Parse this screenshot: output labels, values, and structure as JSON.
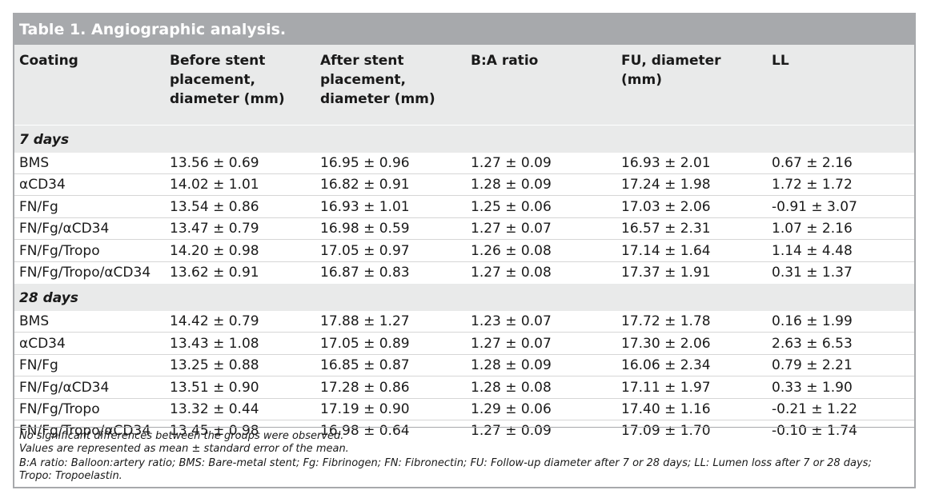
{
  "title": "Table 1. Angiographic analysis.",
  "headers": [
    "Coating",
    "Before stent\nplacement,\ndiameter (mm)",
    "After stent\nplacement,\ndiameter (mm)",
    "B:A ratio",
    "FU, diameter\n(mm)",
    "LL"
  ],
  "groups": [
    {
      "label": "7 days",
      "rows": [
        [
          "BMS",
          "13.56 ± 0.69",
          "16.95 ± 0.96",
          "1.27 ± 0.09",
          "16.93 ± 2.01",
          "0.67 ± 2.16"
        ],
        [
          "αCD34",
          "14.02 ± 1.01",
          "16.82 ± 0.91",
          "1.28 ± 0.09",
          "17.24 ± 1.98",
          "1.72 ± 1.72"
        ],
        [
          "FN/Fg",
          "13.54 ± 0.86",
          "16.93 ± 1.01",
          "1.25 ± 0.06",
          "17.03 ± 2.06",
          "-0.91 ± 3.07"
        ],
        [
          "FN/Fg/αCD34",
          "13.47 ± 0.79",
          "16.98 ± 0.59",
          "1.27 ± 0.07",
          "16.57 ± 2.31",
          "1.07 ± 2.16"
        ],
        [
          "FN/Fg/Tropo",
          "14.20 ± 0.98",
          "17.05 ± 0.97",
          "1.26 ± 0.08",
          "17.14 ± 1.64",
          "1.14 ± 4.48"
        ],
        [
          "FN/Fg/Tropo/αCD34",
          "13.62 ± 0.91",
          "16.87 ± 0.83",
          "1.27 ± 0.08",
          "17.37 ± 1.91",
          "0.31 ± 1.37"
        ]
      ]
    },
    {
      "label": "28 days",
      "rows": [
        [
          "BMS",
          "14.42 ± 0.79",
          "17.88 ± 1.27",
          "1.23 ± 0.07",
          "17.72 ± 1.78",
          "0.16 ± 1.99"
        ],
        [
          "αCD34",
          "13.43 ± 1.08",
          "17.05 ± 0.89",
          "1.27 ± 0.07",
          "17.30 ± 2.06",
          "2.63 ± 6.53"
        ],
        [
          "FN/Fg",
          "13.25 ± 0.88",
          "16.85 ± 0.87",
          "1.28 ± 0.09",
          "16.06 ± 2.34",
          "0.79 ± 2.21"
        ],
        [
          "FN/Fg/αCD34",
          "13.51 ± 0.90",
          "17.28 ± 0.86",
          "1.28 ± 0.08",
          "17.11 ± 1.97",
          "0.33 ± 1.90"
        ],
        [
          "FN/Fg/Tropo",
          "13.32 ± 0.44",
          "17.19 ± 0.90",
          "1.29 ± 0.06",
          "17.40 ± 1.16",
          "-0.21 ± 1.22"
        ],
        [
          "FN/Fg/Tropo/αCD34",
          "13.45 ± 0.98",
          "16.98 ± 0.64",
          "1.27 ± 0.09",
          "17.09 ± 1.70",
          "-0.10 ± 1.74"
        ]
      ]
    }
  ],
  "footnotes": [
    "No significant differences between the groups were observed.",
    "Values are represented as mean ± standard error of the mean.",
    "B:A ratio: Balloon:artery ratio; BMS: Bare-metal stent; Fg: Fibrinogen; FN: Fibronectin; FU: Follow-up diameter after 7 or 28 days; LL: Lumen loss after 7 or 28 days;",
    "Tropo: Tropoelastin."
  ],
  "colors": {
    "title_bar": "#a7a9ac",
    "header_bg": "#e9eaea",
    "row_divider": "#d6d6d6"
  }
}
